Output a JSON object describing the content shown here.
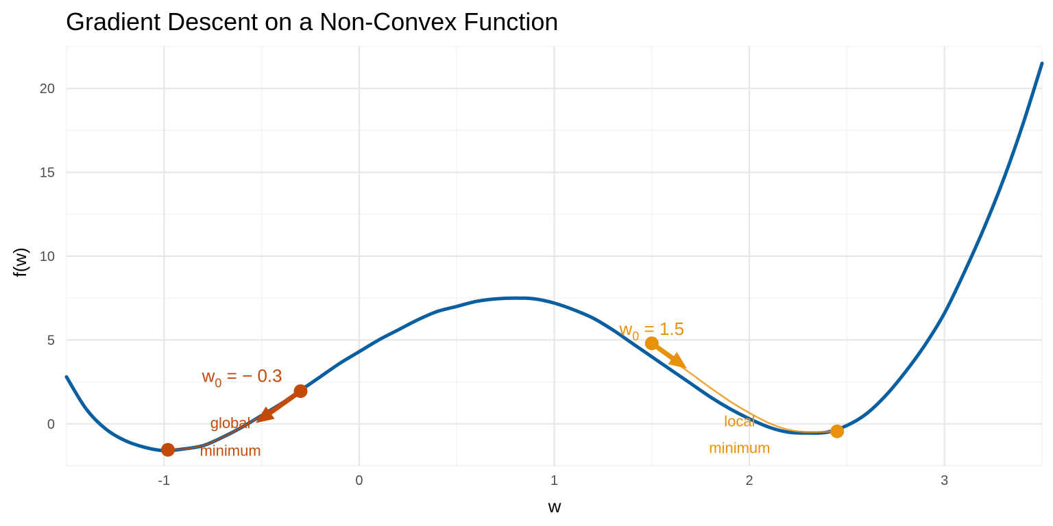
{
  "chart_data": {
    "type": "line",
    "title": "Gradient Descent on a Non-Convex Function",
    "xlabel": "w",
    "ylabel": "f(w)",
    "xlim": [
      -1.5,
      3.5
    ],
    "ylim": [
      -2.5,
      22.5
    ],
    "x_ticks": [
      -1,
      0,
      1,
      2,
      3
    ],
    "x_tick_labels": [
      "-1",
      "0",
      "1",
      "2",
      "3"
    ],
    "y_ticks": [
      0,
      5,
      10,
      15,
      20
    ],
    "y_tick_labels": [
      "0",
      "5",
      "10",
      "15",
      "20"
    ],
    "grid": true,
    "legend": "none",
    "series": [
      {
        "color": "#0a5fa0",
        "x": [
          -1.5,
          -1.4,
          -1.3,
          -1.2,
          -1.1,
          -1.0,
          -0.9,
          -0.8,
          -0.7,
          -0.6,
          -0.5,
          -0.4,
          -0.3,
          -0.2,
          -0.1,
          0.0,
          0.1,
          0.2,
          0.3,
          0.4,
          0.5,
          0.6,
          0.7,
          0.8,
          0.9,
          1.0,
          1.1,
          1.2,
          1.3,
          1.4,
          1.5,
          1.6,
          1.7,
          1.8,
          1.9,
          2.0,
          2.1,
          2.2,
          2.3,
          2.4,
          2.5,
          2.6,
          2.7,
          2.8,
          2.9,
          3.0,
          3.1,
          3.2,
          3.3,
          3.4,
          3.5
        ],
        "y": [
          2.8,
          0.9,
          -0.3,
          -1.0,
          -1.4,
          -1.6,
          -1.5,
          -1.3,
          -0.8,
          -0.2,
          0.5,
          1.2,
          2.0,
          2.8,
          3.6,
          4.3,
          5.0,
          5.6,
          6.2,
          6.7,
          7.0,
          7.3,
          7.45,
          7.5,
          7.45,
          7.2,
          6.8,
          6.3,
          5.6,
          4.8,
          4.0,
          3.2,
          2.4,
          1.6,
          0.9,
          0.3,
          -0.2,
          -0.5,
          -0.55,
          -0.5,
          -0.1,
          0.6,
          1.7,
          3.1,
          4.7,
          6.6,
          9.0,
          11.6,
          14.5,
          17.8,
          21.5
        ]
      }
    ],
    "paths": [
      {
        "color": "#c44a0a",
        "start": {
          "x": -0.3,
          "y": 1.95
        },
        "arrow_to": {
          "x": -0.53,
          "y": 0.05
        },
        "end": {
          "x": -0.98,
          "y": -1.55
        },
        "x": [
          -0.3,
          -0.4,
          -0.5,
          -0.6,
          -0.7,
          -0.8,
          -0.9,
          -0.98
        ],
        "y": [
          1.95,
          1.2,
          0.5,
          -0.2,
          -0.8,
          -1.3,
          -1.5,
          -1.55
        ]
      },
      {
        "color": "#e8910a",
        "start": {
          "x": 1.5,
          "y": 4.8
        },
        "arrow_to": {
          "x": 1.68,
          "y": 3.3
        },
        "end": {
          "x": 2.45,
          "y": -0.45
        },
        "x": [
          1.5,
          1.6,
          1.7,
          1.8,
          1.9,
          2.0,
          2.1,
          2.2,
          2.3,
          2.45
        ],
        "y": [
          4.8,
          3.85,
          3.0,
          2.15,
          1.35,
          0.65,
          0.05,
          -0.35,
          -0.5,
          -0.45
        ]
      }
    ],
    "annotations": [
      {
        "id": "w0-left",
        "base": "w",
        "sub": "0",
        "rest": " = − 0.3",
        "color": "#c44a0a",
        "x": -0.6,
        "y": 2.5
      },
      {
        "id": "global-1",
        "text": "global",
        "color": "#c44a0a",
        "x": -0.66,
        "y": -0.25
      },
      {
        "id": "global-2",
        "text": "minimum",
        "color": "#c44a0a",
        "x": -0.66,
        "y": -1.9
      },
      {
        "id": "w0-right",
        "base": "w",
        "sub": "0",
        "rest": " = 1.5",
        "color": "#e8910a",
        "x": 1.5,
        "y": 5.3
      },
      {
        "id": "local-1",
        "text": "local",
        "color": "#e8910a",
        "x": 1.95,
        "y": -0.15
      },
      {
        "id": "local-2",
        "text": "minimum",
        "color": "#e8910a",
        "x": 1.95,
        "y": -1.75
      }
    ]
  }
}
